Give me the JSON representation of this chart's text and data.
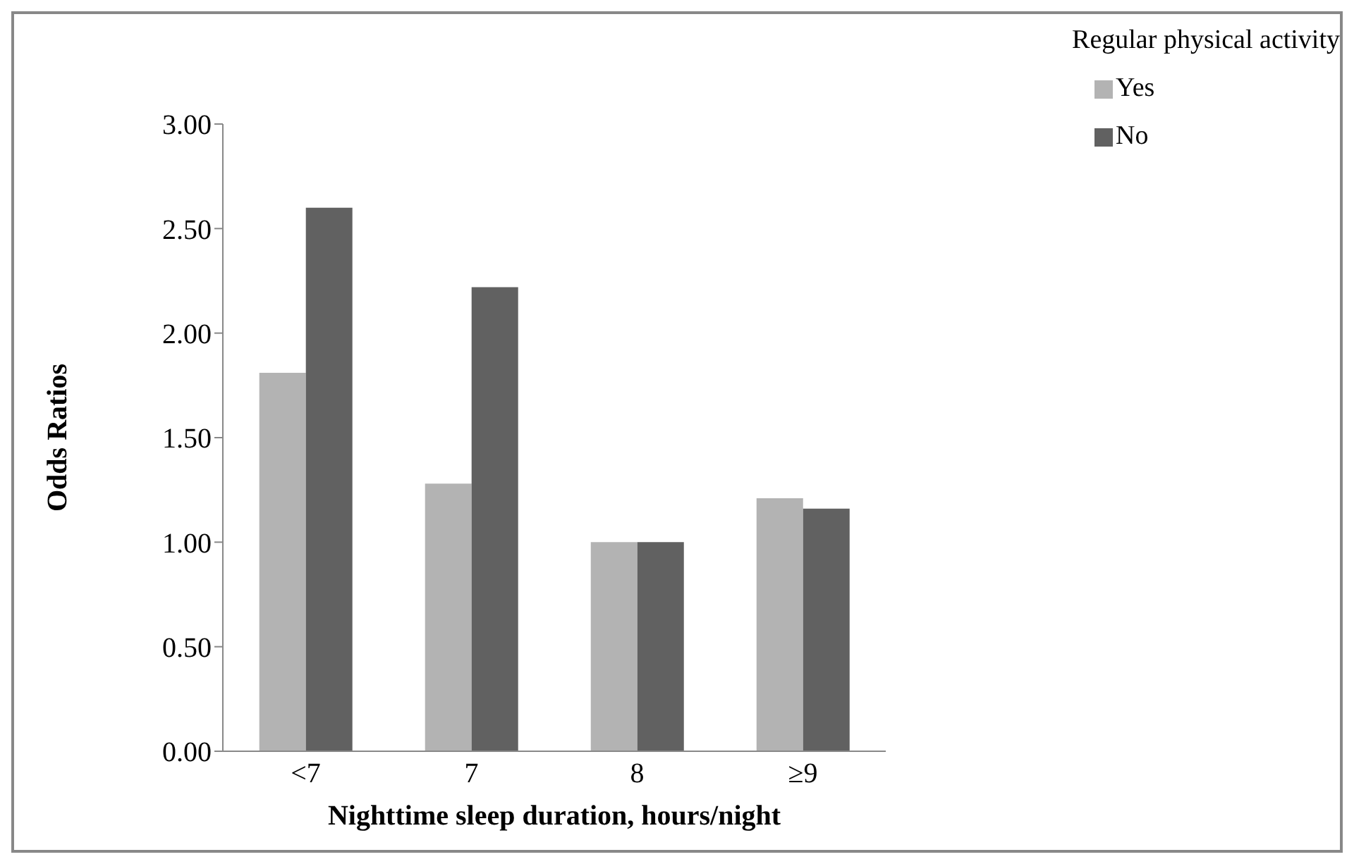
{
  "chart_data": {
    "type": "bar",
    "xlabel": "Nighttime sleep duration, hours/night",
    "ylabel": "Odds Ratios",
    "legend_title": "Regular physical activity",
    "categories": [
      "<7",
      "7",
      "8",
      "≥9"
    ],
    "series": [
      {
        "name": "Yes",
        "color": "#b3b3b3",
        "values": [
          1.81,
          1.28,
          1.0,
          1.21
        ]
      },
      {
        "name": "No",
        "color": "#616161",
        "values": [
          2.6,
          2.22,
          1.0,
          1.16
        ]
      }
    ],
    "ylim": [
      0,
      3
    ],
    "yticks": [
      {
        "value": 0,
        "label": "0.00"
      },
      {
        "value": 0.5,
        "label": "0.50"
      },
      {
        "value": 1,
        "label": "1.00"
      },
      {
        "value": 1.5,
        "label": "1.50"
      },
      {
        "value": 2,
        "label": "2.00"
      },
      {
        "value": 2.5,
        "label": "2.50"
      },
      {
        "value": 3,
        "label": "3.00"
      }
    ],
    "grid": false,
    "legend": "top right"
  }
}
